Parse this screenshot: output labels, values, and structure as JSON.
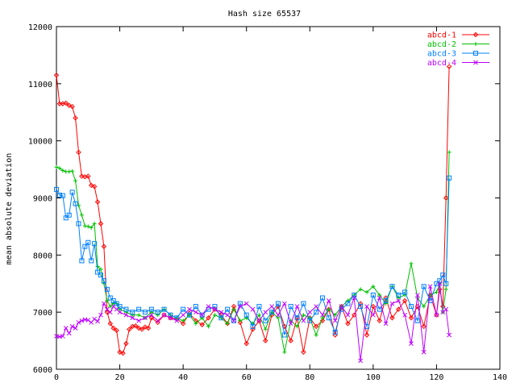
{
  "chart_data": {
    "type": "line",
    "title": "Hash size 65537",
    "xlabel": "",
    "ylabel": "mean absolute deviation",
    "xlim": [
      0,
      140
    ],
    "ylim": [
      6000,
      12000
    ],
    "xticks": [
      0,
      20,
      40,
      60,
      80,
      100,
      120,
      140
    ],
    "yticks": [
      6000,
      7000,
      8000,
      9000,
      10000,
      11000,
      12000
    ],
    "xtick_labels": [
      "0",
      "20",
      "40",
      "60",
      "80",
      "100",
      "120",
      "140"
    ],
    "ytick_labels": [
      "6000",
      "7000",
      "8000",
      "9000",
      "10000",
      "11000",
      "12000"
    ],
    "grid": false,
    "legend_position": "top-right",
    "series": [
      {
        "name": "abcd-1",
        "color": "#ff0000",
        "marker": "diamond",
        "x": [
          0,
          1,
          2,
          3,
          4,
          5,
          6,
          7,
          8,
          9,
          10,
          11,
          12,
          13,
          14,
          15,
          16,
          17,
          18,
          19,
          20,
          21,
          22,
          23,
          24,
          25,
          26,
          27,
          28,
          29,
          30,
          32,
          34,
          36,
          38,
          40,
          42,
          44,
          46,
          48,
          50,
          52,
          54,
          56,
          58,
          60,
          62,
          64,
          66,
          68,
          70,
          72,
          74,
          76,
          78,
          80,
          82,
          84,
          86,
          88,
          90,
          92,
          94,
          96,
          98,
          100,
          102,
          104,
          106,
          108,
          110,
          112,
          114,
          116,
          118,
          120,
          121,
          122,
          123,
          124
        ],
        "y": [
          11150,
          10650,
          10650,
          10660,
          10620,
          10600,
          10400,
          9800,
          9380,
          9370,
          9380,
          9220,
          9200,
          8930,
          8550,
          8150,
          7000,
          6800,
          6720,
          6680,
          6300,
          6280,
          6450,
          6700,
          6750,
          6760,
          6720,
          6700,
          6740,
          6720,
          6900,
          6820,
          6950,
          6900,
          6880,
          6800,
          6980,
          6850,
          6780,
          6900,
          7050,
          6950,
          6800,
          7100,
          6820,
          6450,
          6700,
          6850,
          6500,
          6950,
          7100,
          6750,
          6500,
          6900,
          6300,
          6900,
          6750,
          6850,
          7050,
          6600,
          7100,
          6800,
          6950,
          7150,
          6600,
          7100,
          6850,
          7250,
          6900,
          7050,
          7200,
          6900,
          7100,
          6750,
          7300,
          6950,
          7400,
          7100,
          9000,
          11300
        ]
      },
      {
        "name": "abcd-2",
        "color": "#00c000",
        "marker": "plus",
        "x": [
          0,
          1,
          2,
          3,
          4,
          5,
          6,
          7,
          8,
          9,
          10,
          11,
          12,
          13,
          14,
          15,
          16,
          17,
          18,
          19,
          20,
          22,
          24,
          26,
          28,
          30,
          32,
          34,
          36,
          38,
          40,
          42,
          44,
          46,
          48,
          50,
          52,
          54,
          56,
          58,
          60,
          62,
          64,
          66,
          68,
          70,
          72,
          74,
          76,
          78,
          80,
          82,
          84,
          86,
          88,
          90,
          92,
          94,
          96,
          98,
          100,
          102,
          104,
          106,
          108,
          110,
          112,
          114,
          116,
          118,
          120,
          121,
          122,
          123,
          124
        ],
        "y": [
          9540,
          9520,
          9480,
          9460,
          9460,
          9470,
          9300,
          8870,
          8700,
          8510,
          8500,
          8480,
          8550,
          7800,
          7750,
          7500,
          7200,
          7100,
          7150,
          7150,
          7050,
          7000,
          6950,
          6950,
          6900,
          7000,
          6950,
          7050,
          6950,
          6900,
          6850,
          6950,
          6800,
          6900,
          6750,
          6950,
          6900,
          6800,
          7050,
          6850,
          6900,
          6800,
          6950,
          6700,
          7000,
          6900,
          6300,
          6850,
          6750,
          6950,
          6900,
          6600,
          6900,
          7050,
          6950,
          7100,
          7200,
          7300,
          7400,
          7350,
          7450,
          7300,
          7150,
          7450,
          7250,
          7300,
          7850,
          7250,
          7100,
          7300,
          7350,
          7500,
          7000,
          7400,
          9800
        ]
      },
      {
        "name": "abcd-3",
        "color": "#0080ff",
        "marker": "square",
        "x": [
          0,
          1,
          2,
          3,
          4,
          5,
          6,
          7,
          8,
          9,
          10,
          11,
          12,
          13,
          14,
          15,
          16,
          17,
          18,
          19,
          20,
          22,
          24,
          26,
          28,
          30,
          32,
          34,
          36,
          38,
          40,
          42,
          44,
          46,
          48,
          50,
          52,
          54,
          56,
          58,
          60,
          62,
          64,
          66,
          68,
          70,
          72,
          74,
          76,
          78,
          80,
          82,
          84,
          86,
          88,
          90,
          92,
          94,
          96,
          98,
          100,
          102,
          104,
          106,
          108,
          110,
          112,
          114,
          116,
          118,
          120,
          121,
          122,
          123,
          124
        ],
        "y": [
          9150,
          9050,
          9040,
          8650,
          8700,
          9100,
          8900,
          8550,
          7900,
          8150,
          8220,
          7900,
          8200,
          7700,
          7650,
          7550,
          7400,
          7250,
          7200,
          7150,
          7100,
          7050,
          7000,
          7050,
          7000,
          7050,
          7000,
          7050,
          6950,
          6900,
          7050,
          6950,
          7100,
          6950,
          7050,
          7100,
          6900,
          7050,
          6850,
          7150,
          6950,
          6750,
          7100,
          6850,
          7000,
          7150,
          6600,
          7100,
          6900,
          7150,
          6850,
          7000,
          7250,
          6900,
          6650,
          7050,
          7150,
          7300,
          7100,
          6750,
          7300,
          7050,
          7200,
          7450,
          7300,
          7350,
          7100,
          6850,
          7450,
          7200,
          7500,
          7550,
          7650,
          7500,
          9350
        ]
      },
      {
        "name": "abcd-4",
        "color": "#c000ff",
        "marker": "cross",
        "x": [
          0,
          1,
          2,
          3,
          4,
          5,
          6,
          7,
          8,
          9,
          10,
          11,
          12,
          13,
          14,
          15,
          16,
          17,
          18,
          19,
          20,
          22,
          24,
          26,
          28,
          30,
          32,
          34,
          36,
          38,
          40,
          42,
          44,
          46,
          48,
          50,
          52,
          54,
          56,
          58,
          60,
          62,
          64,
          66,
          68,
          70,
          72,
          74,
          76,
          78,
          80,
          82,
          84,
          86,
          88,
          90,
          92,
          94,
          96,
          98,
          100,
          102,
          104,
          106,
          108,
          110,
          112,
          114,
          116,
          118,
          120,
          121,
          122,
          123,
          124
        ],
        "y": [
          6580,
          6570,
          6580,
          6720,
          6630,
          6750,
          6720,
          6820,
          6850,
          6870,
          6860,
          6820,
          6880,
          6840,
          6950,
          7150,
          7050,
          7000,
          7100,
          7050,
          7000,
          6950,
          6900,
          6850,
          6900,
          6950,
          6850,
          6950,
          6900,
          6850,
          6950,
          7050,
          7000,
          6950,
          7100,
          7050,
          7000,
          6950,
          6850,
          7100,
          7150,
          7050,
          6850,
          7000,
          7100,
          6950,
          7150,
          6800,
          7100,
          6850,
          7000,
          7100,
          6950,
          7200,
          6850,
          7100,
          6950,
          7250,
          6150,
          7100,
          6950,
          7250,
          6800,
          7150,
          7200,
          6950,
          6450,
          7300,
          6300,
          7450,
          6950,
          7500,
          7000,
          7050,
          6600
        ]
      }
    ]
  }
}
